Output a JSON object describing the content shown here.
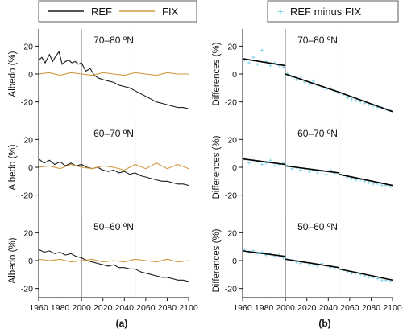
{
  "legend_left": {
    "ref_label": "REF",
    "fix_label": "FIX",
    "ref_color": "#1a1a1a",
    "fix_color": "#d19a3f"
  },
  "legend_right": {
    "label": "REF minus FIX",
    "marker": "+",
    "color": "#7fd3e8"
  },
  "panel_labels": {
    "a": "(a)",
    "b": "(b)"
  },
  "x_ticks": [
    "1960",
    "1980",
    "2000",
    "2020",
    "2040",
    "2060",
    "2080",
    "2100"
  ],
  "chart_data": [
    {
      "type": "line",
      "panel": "a",
      "title": "70–80 ºN",
      "ylabel": "Albedo (%)",
      "xlim": [
        1960,
        2100
      ],
      "ylim": [
        -30,
        30
      ],
      "yticks": [
        -20,
        0,
        20
      ],
      "vlines": [
        2000,
        2050
      ],
      "series": [
        {
          "name": "REF",
          "color": "#1a1a1a",
          "x": [
            1960,
            1963,
            1966,
            1970,
            1973,
            1976,
            1979,
            1982,
            1985,
            1988,
            1991,
            1994,
            1997,
            2000,
            2004,
            2008,
            2012,
            2016,
            2020,
            2025,
            2030,
            2035,
            2040,
            2045,
            2050,
            2055,
            2060,
            2065,
            2070,
            2075,
            2080,
            2085,
            2090,
            2095,
            2100
          ],
          "y": [
            10,
            12,
            8,
            14,
            9,
            13,
            16,
            7,
            9,
            10,
            8,
            9,
            7,
            8,
            2,
            4,
            -1,
            -3,
            -4,
            -5,
            -6,
            -8,
            -9,
            -10,
            -12,
            -14,
            -16,
            -18,
            -20,
            -21,
            -22,
            -23,
            -24,
            -24,
            -25
          ]
        },
        {
          "name": "FIX",
          "color": "#d19a3f",
          "x": [
            1960,
            1970,
            1980,
            1990,
            2000,
            2010,
            2020,
            2030,
            2040,
            2050,
            2060,
            2070,
            2080,
            2090,
            2100
          ],
          "y": [
            0,
            1,
            -1,
            1,
            0,
            -1,
            1,
            0,
            -1,
            1,
            0,
            -1,
            1,
            0,
            0
          ]
        }
      ]
    },
    {
      "type": "line",
      "panel": "a",
      "title": "60–70 ºN",
      "ylabel": "Albedo (%)",
      "xlim": [
        1960,
        2100
      ],
      "ylim": [
        -30,
        30
      ],
      "yticks": [
        -20,
        0,
        20
      ],
      "vlines": [
        2000,
        2050
      ],
      "series": [
        {
          "name": "REF",
          "color": "#1a1a1a",
          "x": [
            1960,
            1965,
            1970,
            1975,
            1980,
            1985,
            1990,
            1995,
            2000,
            2005,
            2010,
            2015,
            2020,
            2025,
            2030,
            2035,
            2040,
            2045,
            2050,
            2055,
            2060,
            2065,
            2070,
            2075,
            2080,
            2085,
            2090,
            2095,
            2100
          ],
          "y": [
            6,
            3,
            5,
            2,
            4,
            1,
            3,
            1,
            2,
            0,
            -1,
            0,
            -2,
            -3,
            -2,
            -4,
            -3,
            -5,
            -4,
            -6,
            -7,
            -8,
            -9,
            -10,
            -10,
            -11,
            -12,
            -12,
            -13
          ]
        },
        {
          "name": "FIX",
          "color": "#d19a3f",
          "x": [
            1960,
            1970,
            1980,
            1990,
            2000,
            2010,
            2020,
            2030,
            2040,
            2050,
            2060,
            2070,
            2080,
            2090,
            2100
          ],
          "y": [
            0,
            1,
            -1,
            2,
            0,
            -1,
            1,
            0,
            -2,
            2,
            -1,
            3,
            -1,
            2,
            -1
          ]
        }
      ]
    },
    {
      "type": "line",
      "panel": "a",
      "title": "50–60 ºN",
      "ylabel": "Albedo (%)",
      "xlim": [
        1960,
        2100
      ],
      "ylim": [
        -30,
        30
      ],
      "yticks": [
        -20,
        0,
        20
      ],
      "vlines": [
        2000,
        2050
      ],
      "series": [
        {
          "name": "REF",
          "color": "#1a1a1a",
          "x": [
            1960,
            1965,
            1970,
            1975,
            1980,
            1985,
            1990,
            1995,
            2000,
            2005,
            2010,
            2015,
            2020,
            2025,
            2030,
            2035,
            2040,
            2045,
            2050,
            2055,
            2060,
            2065,
            2070,
            2075,
            2080,
            2085,
            2090,
            2095,
            2100
          ],
          "y": [
            8,
            6,
            7,
            5,
            6,
            4,
            5,
            3,
            2,
            0,
            -1,
            -2,
            -3,
            -4,
            -3,
            -5,
            -5,
            -6,
            -6,
            -8,
            -9,
            -10,
            -11,
            -12,
            -12,
            -13,
            -14,
            -14,
            -15
          ]
        },
        {
          "name": "FIX",
          "color": "#d19a3f",
          "x": [
            1960,
            1970,
            1980,
            1990,
            2000,
            2010,
            2020,
            2030,
            2040,
            2050,
            2060,
            2070,
            2080,
            2090,
            2100
          ],
          "y": [
            1,
            0,
            1,
            -1,
            0,
            1,
            -1,
            0,
            -1,
            1,
            0,
            -1,
            1,
            -1,
            0
          ]
        }
      ]
    },
    {
      "type": "scatter",
      "panel": "b",
      "title": "70–80 ºN",
      "ylabel": "Differences (%)",
      "xlim": [
        1960,
        2100
      ],
      "ylim": [
        -30,
        30
      ],
      "yticks": [
        -20,
        0,
        20
      ],
      "vlines": [
        2000,
        2050
      ],
      "series": [
        {
          "name": "REF minus FIX",
          "color": "#7fd3e8",
          "x": [
            1962,
            1966,
            1970,
            1974,
            1978,
            1982,
            1986,
            1990,
            1994,
            1998,
            2002,
            2006,
            2010,
            2014,
            2018,
            2022,
            2026,
            2030,
            2034,
            2038,
            2042,
            2046,
            2050,
            2054,
            2058,
            2062,
            2066,
            2070,
            2074,
            2078,
            2082,
            2086,
            2090,
            2094,
            2098
          ],
          "y": [
            10,
            8,
            12,
            7,
            17,
            9,
            6,
            8,
            6,
            5,
            0,
            -2,
            -4,
            -3,
            -6,
            -7,
            -5,
            -8,
            -9,
            -11,
            -10,
            -12,
            -14,
            -15,
            -17,
            -18,
            -19,
            -20,
            -21,
            -22,
            -23,
            -24,
            -24,
            -25,
            -26
          ]
        }
      ],
      "trends": [
        {
          "x": [
            1960,
            2000
          ],
          "y": [
            11,
            6
          ]
        },
        {
          "x": [
            2000,
            2050
          ],
          "y": [
            0,
            -13
          ]
        },
        {
          "x": [
            2050,
            2100
          ],
          "y": [
            -13,
            -27
          ]
        }
      ]
    },
    {
      "type": "scatter",
      "panel": "b",
      "title": "60–70 ºN",
      "ylabel": "Differences (%)",
      "xlim": [
        1960,
        2100
      ],
      "ylim": [
        -30,
        30
      ],
      "yticks": [
        -20,
        0,
        20
      ],
      "vlines": [
        2000,
        2050
      ],
      "series": [
        {
          "name": "REF minus FIX",
          "color": "#7fd3e8",
          "x": [
            1962,
            1966,
            1970,
            1974,
            1978,
            1982,
            1986,
            1990,
            1994,
            1998,
            2002,
            2006,
            2010,
            2014,
            2018,
            2022,
            2026,
            2030,
            2034,
            2038,
            2042,
            2046,
            2050,
            2054,
            2058,
            2062,
            2066,
            2070,
            2074,
            2078,
            2082,
            2086,
            2090,
            2094,
            2098
          ],
          "y": [
            6,
            3,
            5,
            4,
            2,
            3,
            5,
            1,
            2,
            3,
            1,
            -1,
            0,
            -2,
            -1,
            -3,
            -2,
            -4,
            -3,
            -5,
            -2,
            -4,
            -4,
            -6,
            -7,
            -8,
            -9,
            -9,
            -10,
            -11,
            -12,
            -12,
            -13,
            -13,
            -14
          ]
        }
      ],
      "trends": [
        {
          "x": [
            1960,
            2000
          ],
          "y": [
            6,
            2
          ]
        },
        {
          "x": [
            2000,
            2050
          ],
          "y": [
            1,
            -4
          ]
        },
        {
          "x": [
            2050,
            2100
          ],
          "y": [
            -5,
            -13
          ]
        }
      ]
    },
    {
      "type": "scatter",
      "panel": "b",
      "title": "50–60 ºN",
      "ylabel": "Differences (%)",
      "xlim": [
        1960,
        2100
      ],
      "ylim": [
        -30,
        30
      ],
      "yticks": [
        -20,
        0,
        20
      ],
      "vlines": [
        2000,
        2050
      ],
      "series": [
        {
          "name": "REF minus FIX",
          "color": "#7fd3e8",
          "x": [
            1962,
            1966,
            1970,
            1974,
            1978,
            1982,
            1986,
            1990,
            1994,
            1998,
            2002,
            2006,
            2010,
            2014,
            2018,
            2022,
            2026,
            2030,
            2034,
            2038,
            2042,
            2046,
            2050,
            2054,
            2058,
            2062,
            2066,
            2070,
            2074,
            2078,
            2082,
            2086,
            2090,
            2094,
            2098
          ],
          "y": [
            8,
            6,
            7,
            5,
            6,
            4,
            5,
            3,
            4,
            2,
            1,
            0,
            -1,
            -2,
            -1,
            -3,
            -3,
            -4,
            -2,
            -4,
            -5,
            -6,
            -6,
            -7,
            -8,
            -9,
            -9,
            -10,
            -11,
            -12,
            -12,
            -13,
            -14,
            -14,
            -15
          ]
        }
      ],
      "trends": [
        {
          "x": [
            1960,
            2000
          ],
          "y": [
            7,
            3
          ]
        },
        {
          "x": [
            2000,
            2050
          ],
          "y": [
            1,
            -5
          ]
        },
        {
          "x": [
            2050,
            2100
          ],
          "y": [
            -6,
            -14
          ]
        }
      ]
    }
  ]
}
